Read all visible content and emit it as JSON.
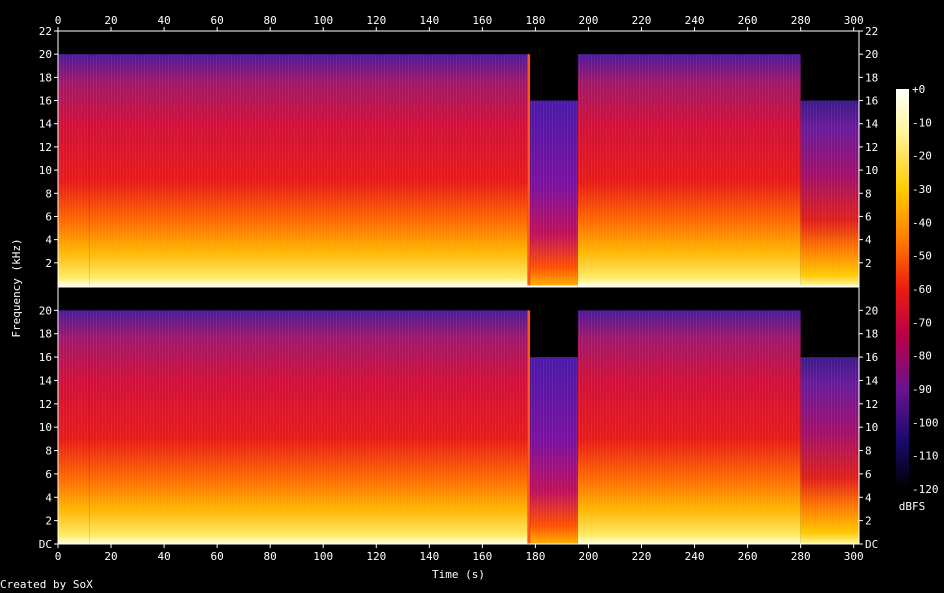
{
  "chart_data": {
    "type": "heatmap",
    "title": "",
    "xlabel": "Time (s)",
    "ylabel": "Frequency (kHz)",
    "credit": "Created by SoX",
    "xlim": [
      0,
      302
    ],
    "ylim": [
      0,
      22
    ],
    "x_ticks": [
      "0",
      "20",
      "40",
      "60",
      "80",
      "100",
      "120",
      "140",
      "160",
      "180",
      "200",
      "220",
      "240",
      "260",
      "280",
      "300"
    ],
    "x_tick_values": [
      0,
      20,
      40,
      60,
      80,
      100,
      120,
      140,
      160,
      180,
      200,
      220,
      240,
      260,
      280,
      300
    ],
    "y_ticks_top": [
      "2",
      "4",
      "6",
      "8",
      "10",
      "12",
      "14",
      "16",
      "18",
      "20",
      "22"
    ],
    "y_ticks_bottom": [
      "DC",
      "2",
      "4",
      "6",
      "8",
      "10",
      "12",
      "14",
      "16",
      "18",
      "20"
    ],
    "y_tick_values": [
      0,
      2,
      4,
      6,
      8,
      10,
      12,
      14,
      16,
      18,
      20,
      22
    ],
    "colorbar": {
      "label": "dBFS",
      "range": [
        -120,
        0
      ],
      "ticks": [
        "+0",
        "-10",
        "-20",
        "-30",
        "-40",
        "-50",
        "-60",
        "-70",
        "-80",
        "-90",
        "-100",
        "-110",
        "-120"
      ],
      "tick_values": [
        0,
        -10,
        -20,
        -30,
        -40,
        -50,
        -60,
        -70,
        -80,
        -90,
        -100,
        -110,
        -120
      ]
    },
    "channels": [
      {
        "name": "",
        "segments": [
          {
            "t": [
              0,
              12
            ],
            "cutoff_khz": 20,
            "intensity": "loud"
          },
          {
            "t": [
              12,
              177
            ],
            "cutoff_khz": 20,
            "intensity": "loud"
          },
          {
            "t": [
              177,
              178
            ],
            "cutoff_khz": 20,
            "intensity": "transient"
          },
          {
            "t": [
              178,
              196
            ],
            "cutoff_khz": 16,
            "intensity": "quiet"
          },
          {
            "t": [
              196,
              280
            ],
            "cutoff_khz": 20,
            "intensity": "loud"
          },
          {
            "t": [
              280,
              302
            ],
            "cutoff_khz": 16,
            "intensity": "medium"
          }
        ]
      },
      {
        "name": "",
        "segments": [
          {
            "t": [
              0,
              12
            ],
            "cutoff_khz": 20,
            "intensity": "loud"
          },
          {
            "t": [
              12,
              177
            ],
            "cutoff_khz": 20,
            "intensity": "loud"
          },
          {
            "t": [
              177,
              178
            ],
            "cutoff_khz": 20,
            "intensity": "transient"
          },
          {
            "t": [
              178,
              196
            ],
            "cutoff_khz": 16,
            "intensity": "quiet"
          },
          {
            "t": [
              196,
              280
            ],
            "cutoff_khz": 20,
            "intensity": "loud"
          },
          {
            "t": [
              280,
              302
            ],
            "cutoff_khz": 16,
            "intensity": "medium"
          }
        ]
      }
    ]
  }
}
